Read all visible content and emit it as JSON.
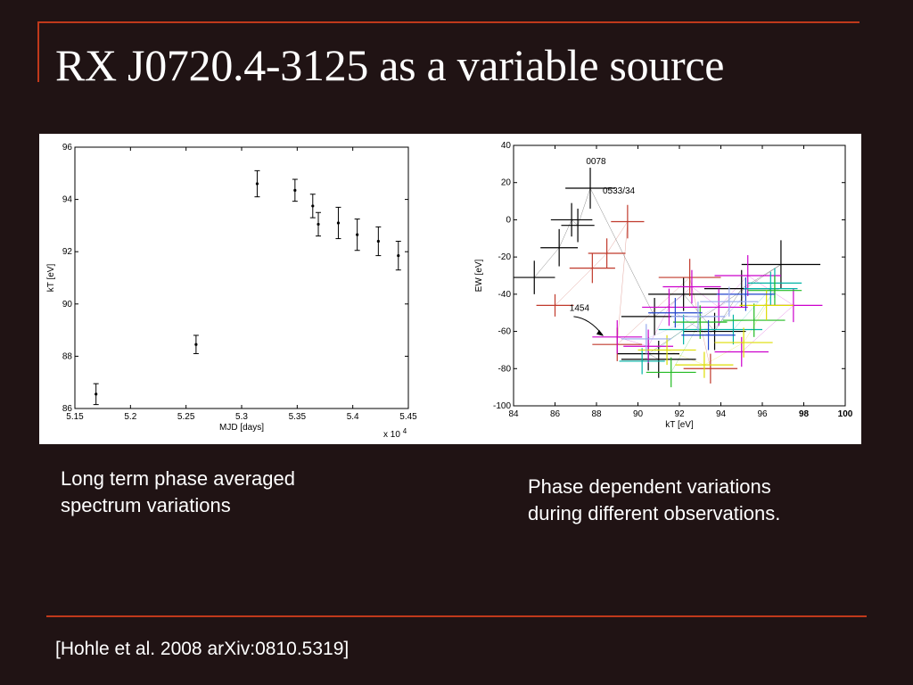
{
  "slide": {
    "title": "RX J0720.4-3125 as a variable source",
    "caption_left": [
      "Long term phase averaged",
      "spectrum variations"
    ],
    "caption_right": [
      "Phase dependent variations",
      "during different observations."
    ],
    "reference": "[Hohle et al. 2008 arXiv:0810.5319]",
    "colors": {
      "background": "#201314",
      "accent_rule": "#c0391b",
      "text": "#ffffff"
    }
  },
  "chart_data": [
    {
      "type": "scatter",
      "xlabel": "MJD [days]",
      "ylabel": "kT [eV]",
      "x_multiplier_label": "x 10",
      "x_multiplier_exp": "4",
      "xlim": [
        5.15,
        5.45
      ],
      "ylim": [
        86,
        96
      ],
      "x_ticks": [
        "5.15",
        "5.2",
        "5.25",
        "5.3",
        "5.35",
        "5.4",
        "5.45"
      ],
      "y_ticks": [
        "86",
        "88",
        "90",
        "92",
        "94",
        "96"
      ],
      "grid": false,
      "points": [
        {
          "x": 5.169,
          "y": 86.55,
          "err": 0.4
        },
        {
          "x": 5.259,
          "y": 88.45,
          "err": 0.35
        },
        {
          "x": 5.314,
          "y": 94.6,
          "err": 0.5
        },
        {
          "x": 5.348,
          "y": 94.35,
          "err": 0.42
        },
        {
          "x": 5.364,
          "y": 93.75,
          "err": 0.45
        },
        {
          "x": 5.369,
          "y": 93.05,
          "err": 0.45
        },
        {
          "x": 5.387,
          "y": 93.1,
          "err": 0.6
        },
        {
          "x": 5.404,
          "y": 92.65,
          "err": 0.6
        },
        {
          "x": 5.423,
          "y": 92.4,
          "err": 0.55
        },
        {
          "x": 5.441,
          "y": 91.85,
          "err": 0.55
        }
      ]
    },
    {
      "type": "scatter",
      "xlabel": "kT [eV]",
      "ylabel": "EW [eV]",
      "xlim": [
        84,
        100
      ],
      "ylim": [
        -100,
        40
      ],
      "x_ticks": [
        "84",
        "86",
        "88",
        "90",
        "92",
        "94",
        "96",
        "98",
        "100"
      ],
      "y_ticks": [
        "-100",
        "-80",
        "-60",
        "-40",
        "-20",
        "0",
        "20",
        "40"
      ],
      "grid": false,
      "annotations": [
        {
          "text": "0078",
          "x": 87.5,
          "y": 30
        },
        {
          "text": "0533/34",
          "x": 88.3,
          "y": 14
        },
        {
          "text": "1454",
          "x": 86.7,
          "y": -49
        }
      ],
      "series": [
        {
          "color": "#000000",
          "points": [
            {
              "x": 85.0,
              "y": -31,
              "ex": 1.0,
              "ey": 9
            },
            {
              "x": 86.2,
              "y": -15,
              "ex": 0.9,
              "ey": 10
            },
            {
              "x": 86.8,
              "y": 0,
              "ex": 1.0,
              "ey": 9
            },
            {
              "x": 87.1,
              "y": -3,
              "ex": 0.8,
              "ey": 9
            },
            {
              "x": 87.7,
              "y": 17,
              "ex": 1.2,
              "ey": 11
            },
            {
              "x": 90.8,
              "y": -52,
              "ex": 1.6,
              "ey": 10
            },
            {
              "x": 92.2,
              "y": -40,
              "ex": 1.7,
              "ey": 9
            },
            {
              "x": 93.7,
              "y": -60,
              "ex": 1.5,
              "ey": 10
            },
            {
              "x": 95.0,
              "y": -37,
              "ex": 1.8,
              "ey": 10
            },
            {
              "x": 96.9,
              "y": -24,
              "ex": 1.9,
              "ey": 13
            },
            {
              "x": 90.5,
              "y": -72,
              "ex": 1.5,
              "ey": 9
            },
            {
              "x": 91.0,
              "y": -75,
              "ex": 1.8,
              "ey": 10
            }
          ]
        },
        {
          "color": "#c0392b",
          "points": [
            {
              "x": 86.0,
              "y": -46,
              "ex": 0.9,
              "ey": 6
            },
            {
              "x": 87.8,
              "y": -26,
              "ex": 1.1,
              "ey": 8
            },
            {
              "x": 88.5,
              "y": -18,
              "ex": 0.9,
              "ey": 8
            },
            {
              "x": 89.5,
              "y": -1,
              "ex": 0.8,
              "ey": 9
            },
            {
              "x": 89.0,
              "y": -67,
              "ex": 1.2,
              "ey": 9
            },
            {
              "x": 92.5,
              "y": -31,
              "ex": 1.5,
              "ey": 10
            },
            {
              "x": 93.5,
              "y": -80,
              "ex": 1.3,
              "ey": 8
            }
          ]
        },
        {
          "color": "#cc00cc",
          "points": [
            {
              "x": 89.0,
              "y": -63,
              "ex": 1.2,
              "ey": 9
            },
            {
              "x": 90.5,
              "y": -68,
              "ex": 1.2,
              "ey": 9
            },
            {
              "x": 91.5,
              "y": -47,
              "ex": 1.3,
              "ey": 10
            },
            {
              "x": 92.6,
              "y": -36,
              "ex": 1.4,
              "ey": 9
            },
            {
              "x": 93.9,
              "y": -47,
              "ex": 1.4,
              "ey": 10
            },
            {
              "x": 95.3,
              "y": -30,
              "ex": 1.6,
              "ey": 11
            },
            {
              "x": 97.5,
              "y": -46,
              "ex": 1.4,
              "ey": 9
            },
            {
              "x": 95.0,
              "y": -71,
              "ex": 1.3,
              "ey": 8
            }
          ]
        },
        {
          "color": "#00b3a6",
          "points": [
            {
              "x": 90.2,
              "y": -76,
              "ex": 1.1,
              "ey": 7
            },
            {
              "x": 92.2,
              "y": -59,
              "ex": 1.2,
              "ey": 8
            },
            {
              "x": 94.6,
              "y": -59,
              "ex": 1.4,
              "ey": 8
            },
            {
              "x": 96.4,
              "y": -37,
              "ex": 1.3,
              "ey": 9
            },
            {
              "x": 96.6,
              "y": -34,
              "ex": 1.3,
              "ey": 8
            }
          ]
        },
        {
          "color": "#22bb22",
          "points": [
            {
              "x": 91.6,
              "y": -82,
              "ex": 1.2,
              "ey": 8
            },
            {
              "x": 93.0,
              "y": -55,
              "ex": 1.3,
              "ey": 9
            },
            {
              "x": 95.6,
              "y": -54,
              "ex": 1.5,
              "ey": 9
            },
            {
              "x": 96.6,
              "y": -38,
              "ex": 1.3,
              "ey": 8
            }
          ]
        },
        {
          "color": "#dddd00",
          "points": [
            {
              "x": 91.4,
              "y": -70,
              "ex": 1.4,
              "ey": 8
            },
            {
              "x": 93.2,
              "y": -78,
              "ex": 1.4,
              "ey": 7
            },
            {
              "x": 95.1,
              "y": -66,
              "ex": 1.4,
              "ey": 8
            },
            {
              "x": 96.2,
              "y": -46,
              "ex": 1.3,
              "ey": 8
            }
          ]
        },
        {
          "color": "#2244cc",
          "points": [
            {
              "x": 91.8,
              "y": -50,
              "ex": 1.3,
              "ey": 8
            },
            {
              "x": 93.4,
              "y": -62,
              "ex": 1.3,
              "ey": 8
            },
            {
              "x": 95.2,
              "y": -40,
              "ex": 1.4,
              "ey": 9
            }
          ]
        },
        {
          "color": "#99aaee",
          "points": [
            {
              "x": 90.4,
              "y": -64,
              "ex": 1.2,
              "ey": 8
            },
            {
              "x": 92.9,
              "y": -52,
              "ex": 1.3,
              "ey": 8
            },
            {
              "x": 94.4,
              "y": -44,
              "ex": 1.4,
              "ey": 8
            }
          ]
        }
      ]
    }
  ]
}
